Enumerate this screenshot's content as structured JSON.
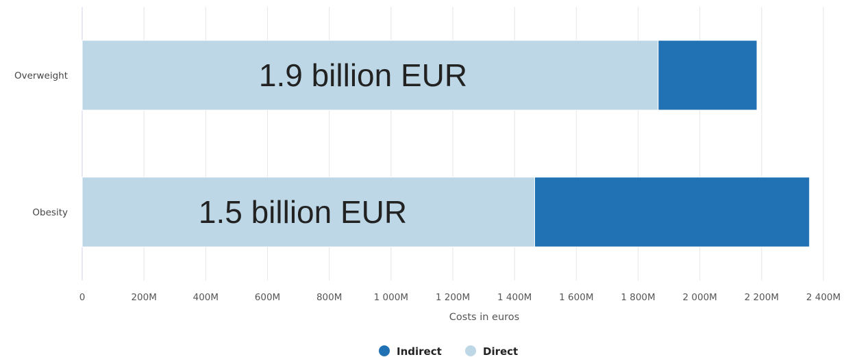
{
  "chart_data": {
    "type": "bar",
    "orientation": "horizontal",
    "stacked": true,
    "categories": [
      "Overweight",
      "Obesity"
    ],
    "series": [
      {
        "name": "Direct",
        "values": [
          1865,
          1465
        ],
        "color": "#bdd7e7"
      },
      {
        "name": "Indirect",
        "values": [
          320,
          890
        ],
        "color": "#2171b5"
      }
    ],
    "annotations": [
      "1.9 billion EUR",
      "1.5 billion EUR"
    ],
    "xlabel": "Costs in euros",
    "xlim": [
      0,
      2400
    ],
    "x_ticks": [
      0,
      200,
      400,
      600,
      800,
      1000,
      1200,
      1400,
      1600,
      1800,
      2000,
      2200,
      2400
    ],
    "x_tick_labels": [
      "0",
      "200M",
      "400M",
      "600M",
      "800M",
      "1 000M",
      "1 200M",
      "1 400M",
      "1 600M",
      "1 800M",
      "2 000M",
      "2 200M",
      "2 400M"
    ],
    "grid": true,
    "legend": {
      "position": "bottom-center",
      "items": [
        {
          "label": "Indirect",
          "color": "#2171b5"
        },
        {
          "label": "Direct",
          "color": "#bdd7e7"
        }
      ]
    }
  }
}
